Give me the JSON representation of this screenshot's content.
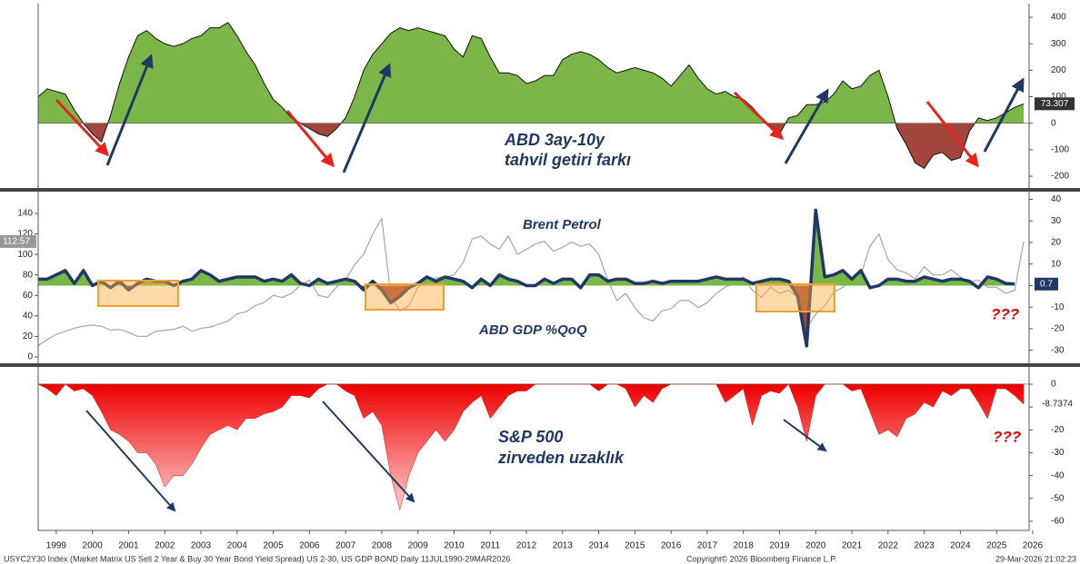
{
  "chart_data": [
    {
      "type": "area",
      "annotations": [
        "ABD 3ay-10y",
        "tahvil getiri farkı"
      ],
      "x": [
        1999,
        1999.25,
        1999.5,
        1999.75,
        2000,
        2000.25,
        2000.5,
        2000.75,
        2001,
        2001.25,
        2001.5,
        2001.75,
        2002,
        2002.25,
        2002.5,
        2002.75,
        2003,
        2003.25,
        2003.5,
        2003.75,
        2004,
        2004.25,
        2004.5,
        2004.75,
        2005,
        2005.25,
        2005.5,
        2005.75,
        2006,
        2006.25,
        2006.5,
        2006.75,
        2007,
        2007.25,
        2007.5,
        2007.75,
        2008,
        2008.25,
        2008.5,
        2008.75,
        2009,
        2009.25,
        2009.5,
        2009.75,
        2010,
        2010.25,
        2010.5,
        2010.75,
        2011,
        2011.25,
        2011.5,
        2011.75,
        2012,
        2012.25,
        2012.5,
        2012.75,
        2013,
        2013.25,
        2013.5,
        2013.75,
        2014,
        2014.25,
        2014.5,
        2014.75,
        2015,
        2015.25,
        2015.5,
        2015.75,
        2016,
        2016.25,
        2016.5,
        2016.75,
        2017,
        2017.25,
        2017.5,
        2017.75,
        2018,
        2018.25,
        2018.5,
        2018.75,
        2019,
        2019.25,
        2019.5,
        2019.75,
        2020,
        2020.25,
        2020.5,
        2020.75,
        2021,
        2021.25,
        2021.5,
        2021.75,
        2022,
        2022.25,
        2022.5,
        2022.75,
        2023,
        2023.25,
        2023.5,
        2023.75,
        2024,
        2024.25,
        2024.5,
        2024.75,
        2025,
        2025.25,
        2025.5,
        2025.75,
        2026,
        2026.25
      ],
      "values": [
        100,
        130,
        120,
        110,
        50,
        0,
        -40,
        -70,
        30,
        150,
        250,
        330,
        350,
        320,
        300,
        290,
        300,
        320,
        330,
        360,
        360,
        380,
        330,
        270,
        220,
        150,
        90,
        60,
        20,
        0,
        -20,
        -40,
        -50,
        -20,
        20,
        100,
        200,
        260,
        300,
        340,
        360,
        350,
        360,
        350,
        340,
        330,
        280,
        250,
        330,
        320,
        250,
        190,
        190,
        180,
        150,
        160,
        180,
        180,
        240,
        260,
        270,
        260,
        240,
        210,
        190,
        200,
        210,
        200,
        190,
        170,
        140,
        180,
        220,
        170,
        130,
        110,
        120,
        100,
        90,
        60,
        20,
        -10,
        -40,
        20,
        30,
        70,
        70,
        80,
        110,
        160,
        130,
        140,
        180,
        200,
        100,
        -20,
        -80,
        -150,
        -170,
        -120,
        -110,
        -140,
        -130,
        -30,
        20,
        10,
        20,
        40,
        60,
        73.307
      ],
      "color": "#7ab648",
      "negative_color": "#a3443d",
      "line_color": "#111111",
      "xlim": [
        1999,
        2026.4
      ],
      "ylim": [
        -240,
        450
      ],
      "yticks": [
        -200,
        -100,
        0,
        100,
        200,
        300,
        400
      ]
    },
    {
      "type": "line",
      "annotations": [
        "???"
      ],
      "x": [
        1999,
        1999.25,
        1999.5,
        1999.75,
        2000,
        2000.25,
        2000.5,
        2000.75,
        2001,
        2001.25,
        2001.5,
        2001.75,
        2002,
        2002.25,
        2002.5,
        2002.75,
        2003,
        2003.25,
        2003.5,
        2003.75,
        2004,
        2004.25,
        2004.5,
        2004.75,
        2005,
        2005.25,
        2005.5,
        2005.75,
        2006,
        2006.25,
        2006.5,
        2006.75,
        2007,
        2007.25,
        2007.5,
        2007.75,
        2008,
        2008.25,
        2008.5,
        2008.75,
        2009,
        2009.25,
        2009.5,
        2009.75,
        2010,
        2010.25,
        2010.5,
        2010.75,
        2011,
        2011.25,
        2011.5,
        2011.75,
        2012,
        2012.25,
        2012.5,
        2012.75,
        2013,
        2013.25,
        2013.5,
        2013.75,
        2014,
        2014.25,
        2014.5,
        2014.75,
        2015,
        2015.25,
        2015.5,
        2015.75,
        2016,
        2016.25,
        2016.5,
        2016.75,
        2017,
        2017.25,
        2017.5,
        2017.75,
        2018,
        2018.25,
        2018.5,
        2018.75,
        2019,
        2019.25,
        2019.5,
        2019.75,
        2020,
        2020.25,
        2020.5,
        2020.75,
        2021,
        2021.25,
        2021.5,
        2021.75,
        2022,
        2022.25,
        2022.5,
        2022.75,
        2023,
        2023.25,
        2023.5,
        2023.75,
        2024,
        2024.25,
        2024.5,
        2024.75,
        2025,
        2025.25,
        2025.5,
        2025.75,
        2026,
        2026.25
      ],
      "series": [
        {
          "name": "Brent Petrol",
          "color": "#a6a6a6",
          "values": [
            11,
            17,
            22,
            25,
            28,
            30,
            31,
            30,
            26,
            27,
            24,
            20,
            20,
            25,
            26,
            27,
            30,
            25,
            28,
            29,
            32,
            35,
            42,
            44,
            50,
            53,
            60,
            58,
            62,
            70,
            75,
            60,
            58,
            68,
            75,
            90,
            100,
            120,
            135,
            60,
            45,
            50,
            68,
            75,
            77,
            78,
            80,
            92,
            115,
            118,
            110,
            105,
            118,
            100,
            105,
            110,
            113,
            103,
            107,
            112,
            108,
            110,
            100,
            75,
            55,
            62,
            48,
            38,
            35,
            45,
            47,
            55,
            55,
            48,
            53,
            62,
            68,
            72,
            78,
            65,
            58,
            68,
            62,
            65,
            58,
            28,
            42,
            50,
            63,
            68,
            75,
            80,
            108,
            120,
            95,
            85,
            82,
            76,
            88,
            80,
            80,
            85,
            78,
            73,
            75,
            68,
            68,
            62,
            65,
            112.57
          ]
        },
        {
          "name": "ABD GDP %QoQ",
          "color": "#1f3864",
          "axis": "y2",
          "fill_color": "#7ab648",
          "negative_color": "#a3443d",
          "values": [
            3,
            3,
            5,
            7,
            1,
            7,
            0,
            2,
            -1,
            2,
            -2,
            1,
            3,
            2,
            2,
            0,
            2,
            3,
            7,
            5,
            2,
            3,
            4,
            4,
            4,
            2,
            3,
            2,
            5,
            1,
            0,
            3,
            1,
            2,
            3,
            2,
            -2,
            2,
            -2,
            -8,
            -5,
            -1,
            1,
            4,
            2,
            4,
            3,
            2,
            -1,
            3,
            0,
            5,
            3,
            2,
            0,
            0,
            3,
            1,
            3,
            3,
            -1,
            5,
            5,
            2,
            3,
            3,
            1,
            1,
            2,
            1,
            2,
            2,
            2,
            2,
            3,
            4,
            3,
            3,
            3,
            1,
            2,
            3,
            3,
            2,
            -5,
            -28,
            35,
            4,
            5,
            7,
            3,
            7,
            -1,
            0,
            3,
            3,
            2,
            2,
            4,
            3,
            2,
            3,
            3,
            2,
            -1,
            4,
            3,
            1,
            0.7,
            null
          ]
        }
      ],
      "xlim": [
        1999,
        2026.4
      ],
      "ylim": [
        -4,
        160
      ],
      "yticks": [
        0,
        20,
        40,
        60,
        80,
        100,
        120,
        140
      ],
      "y2lim": [
        -35,
        43
      ],
      "y2ticks": [
        -30,
        -20,
        -10,
        0,
        10,
        20,
        30,
        40
      ]
    },
    {
      "type": "area",
      "annotations": [
        "S&P 500",
        "zirveden uzaklık",
        "???"
      ],
      "x": [
        1999,
        1999.25,
        1999.5,
        1999.75,
        2000,
        2000.25,
        2000.5,
        2000.75,
        2001,
        2001.25,
        2001.5,
        2001.75,
        2002,
        2002.25,
        2002.5,
        2002.75,
        2003,
        2003.25,
        2003.5,
        2003.75,
        2004,
        2004.25,
        2004.5,
        2004.75,
        2005,
        2005.25,
        2005.5,
        2005.75,
        2006,
        2006.25,
        2006.5,
        2006.75,
        2007,
        2007.25,
        2007.5,
        2007.75,
        2008,
        2008.25,
        2008.5,
        2008.75,
        2009,
        2009.25,
        2009.5,
        2009.75,
        2010,
        2010.25,
        2010.5,
        2010.75,
        2011,
        2011.25,
        2011.5,
        2011.75,
        2012,
        2012.25,
        2012.5,
        2012.75,
        2013,
        2013.25,
        2013.5,
        2013.75,
        2014,
        2014.25,
        2014.5,
        2014.75,
        2015,
        2015.25,
        2015.5,
        2015.75,
        2016,
        2016.25,
        2016.5,
        2016.75,
        2017,
        2017.25,
        2017.5,
        2017.75,
        2018,
        2018.25,
        2018.5,
        2018.75,
        2019,
        2019.25,
        2019.5,
        2019.75,
        2020,
        2020.25,
        2020.5,
        2020.75,
        2021,
        2021.25,
        2021.5,
        2021.75,
        2022,
        2022.25,
        2022.5,
        2022.75,
        2023,
        2023.25,
        2023.5,
        2023.75,
        2024,
        2024.25,
        2024.5,
        2024.75,
        2025,
        2025.25,
        2025.5,
        2025.75,
        2026,
        2026.25
      ],
      "values": [
        0,
        -2,
        -5,
        0,
        -3,
        -2,
        -5,
        -12,
        -20,
        -22,
        -25,
        -30,
        -30,
        -35,
        -45,
        -40,
        -40,
        -35,
        -28,
        -22,
        -20,
        -18,
        -20,
        -15,
        -15,
        -13,
        -12,
        -10,
        -5,
        -5,
        -6,
        -2,
        0,
        0,
        -3,
        -5,
        -15,
        -12,
        -18,
        -40,
        -55,
        -40,
        -30,
        -25,
        -20,
        -25,
        -20,
        -12,
        -8,
        -5,
        -15,
        -10,
        -5,
        -3,
        -3,
        0,
        0,
        0,
        0,
        0,
        0,
        0,
        -3,
        0,
        0,
        -2,
        -10,
        -5,
        -8,
        -2,
        0,
        0,
        0,
        0,
        0,
        0,
        -8,
        -5,
        -2,
        -18,
        -5,
        -3,
        -4,
        0,
        -10,
        -25,
        -5,
        0,
        0,
        0,
        -3,
        -2,
        -12,
        -22,
        -20,
        -23,
        -15,
        -13,
        -8,
        -10,
        -3,
        -5,
        -2,
        -2,
        -8,
        -15,
        -2,
        -2,
        -5,
        -8.7374
      ],
      "color": "#ee0000",
      "xlim": [
        1999,
        2026.4
      ],
      "ylim": [
        -62,
        5
      ],
      "yticks": [
        -60,
        -50,
        -40,
        -30,
        -20,
        -10,
        0
      ],
      "xticks": [
        {
          "value": 1999.5,
          "label": "1999"
        },
        {
          "value": 2000.5,
          "label": "2000"
        },
        {
          "value": 2001.5,
          "label": "2001"
        },
        {
          "value": 2002.5,
          "label": "2002"
        },
        {
          "value": 2003.5,
          "label": "2003"
        },
        {
          "value": 2004.5,
          "label": "2004"
        },
        {
          "value": 2005.5,
          "label": "2005"
        },
        {
          "value": 2006.5,
          "label": "2006"
        },
        {
          "value": 2007.5,
          "label": "2007"
        },
        {
          "value": 2008.5,
          "label": "2008"
        },
        {
          "value": 2009.5,
          "label": "2009"
        },
        {
          "value": 2010.5,
          "label": "2010"
        },
        {
          "value": 2011.5,
          "label": "2011"
        },
        {
          "value": 2012.5,
          "label": "2012"
        },
        {
          "value": 2013.5,
          "label": "2013"
        },
        {
          "value": 2014.5,
          "label": "2014"
        },
        {
          "value": 2015.5,
          "label": "2015"
        },
        {
          "value": 2016.5,
          "label": "2016"
        },
        {
          "value": 2017.5,
          "label": "2017"
        },
        {
          "value": 2018.5,
          "label": "2018"
        },
        {
          "value": 2019.5,
          "label": "2019"
        },
        {
          "value": 2020.5,
          "label": "2020"
        },
        {
          "value": 2021.5,
          "label": "2021"
        },
        {
          "value": 2022.5,
          "label": "2022"
        },
        {
          "value": 2023.5,
          "label": "2023"
        },
        {
          "value": 2024.5,
          "label": "2024"
        },
        {
          "value": 2025.5,
          "label": "2025"
        },
        {
          "value": 2026.5,
          "label": "2026"
        }
      ]
    }
  ],
  "footer": {
    "left": "USYC2Y30 Index (Market Matrix US Sell 2 Year & Buy 30 Year Bond Yield Spread) US 2-30, US GDP BOND Daily 11JUL1990-29MAR2026",
    "center": "Copyright© 2026 Bloomberg Finance L.P.",
    "right": "29-Mar-2026 21:02:23"
  }
}
